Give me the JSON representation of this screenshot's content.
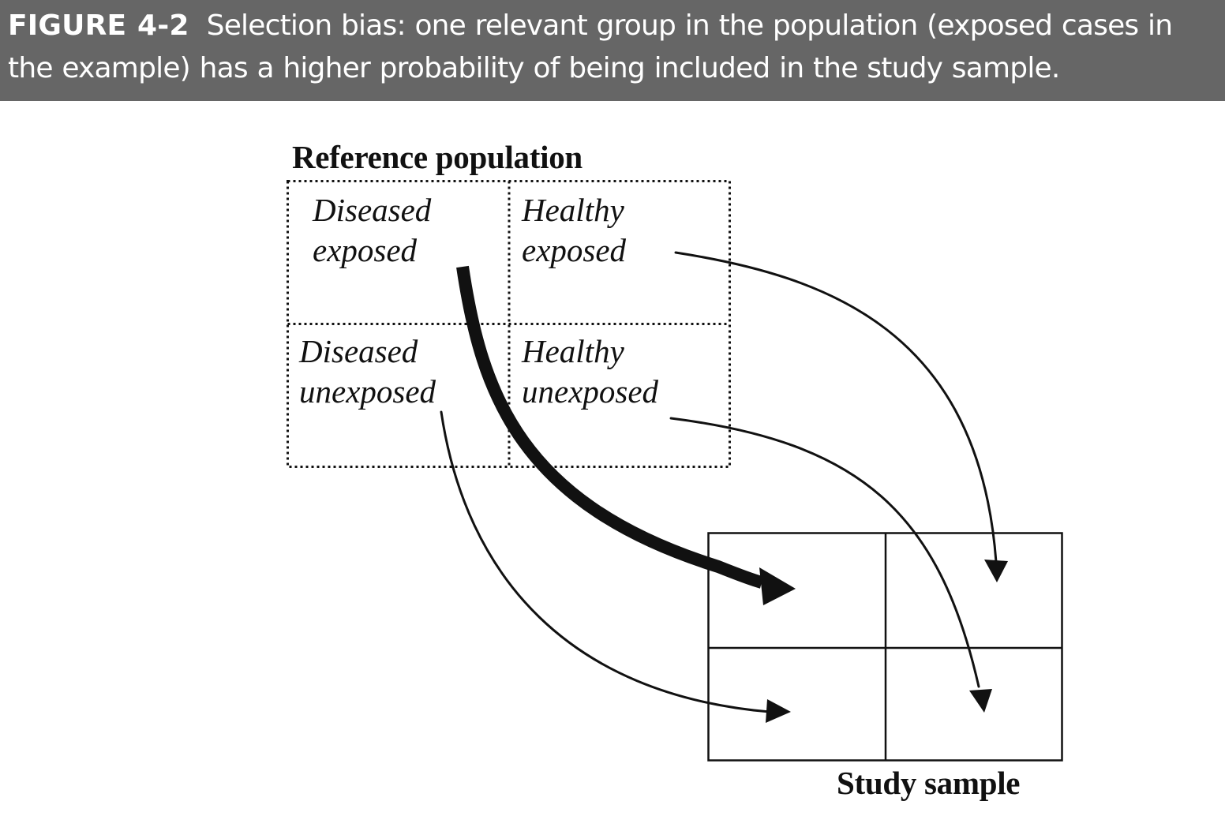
{
  "caption": {
    "label": "FIGURE 4-2",
    "text": "Selection bias: one relevant group in the population (exposed cases in the example) has a higher probability of being included in the study sample."
  },
  "reference_population": {
    "title": "Reference population",
    "cells": {
      "diseased_exposed": {
        "line1": "Diseased",
        "line2": "exposed"
      },
      "healthy_exposed": {
        "line1": "Healthy",
        "line2": "exposed"
      },
      "diseased_unexposed": {
        "line1": "Diseased",
        "line2": "unexposed"
      },
      "healthy_unexposed": {
        "line1": "Healthy",
        "line2": "unexposed"
      }
    }
  },
  "study_sample": {
    "title": "Study sample"
  },
  "colors": {
    "caption_background": "#666666",
    "caption_text": "#ffffff",
    "ink": "#111111"
  }
}
